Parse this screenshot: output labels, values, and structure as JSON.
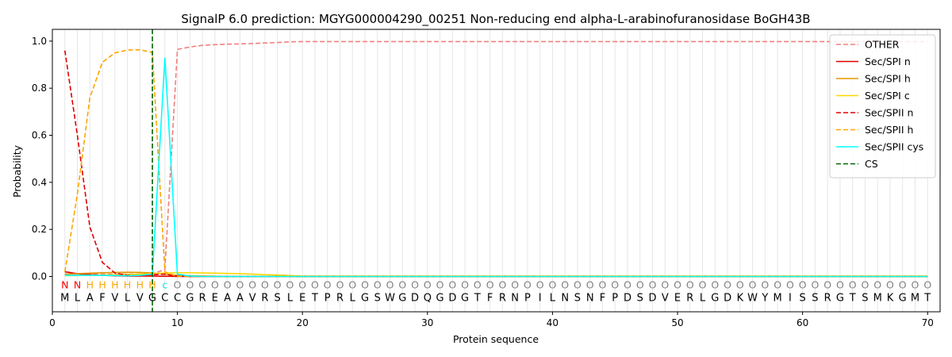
{
  "chart_data": {
    "type": "line",
    "title": "SignalP 6.0 prediction: MGYG000004290_00251 Non-reducing end alpha-L-arabinofuranosidase BoGH43B",
    "xlabel": "Protein sequence",
    "ylabel": "Probability",
    "xlim": [
      0,
      71
    ],
    "ylim": [
      -0.15,
      1.05
    ],
    "xticks": [
      0,
      10,
      20,
      30,
      40,
      50,
      60,
      70
    ],
    "yticks": [
      0.0,
      0.2,
      0.4,
      0.6,
      0.8,
      1.0
    ],
    "grid": "vertical lines at each residue",
    "legend_position": "top-right",
    "sequence": "MLAFVLVGCCGREAAVRSLETPRLGSWGDQGDGTFRNPILNSNFPDSDVERLGDKWYMISSRGTSMKGMT",
    "regions": "NNHHHHHHcOOOOOOOOOOOOOOOOOOOOOOOOOOOOOOOOOOOOOOOOOOOOOOOOOOOOOOOOOOOOO",
    "region_colors": {
      "N": "#ff0000",
      "H": "#ffa500",
      "c": "#00e5e5",
      "O": "#808080"
    },
    "cleavage_site": 8,
    "series": [
      {
        "name": "OTHER",
        "color": "#f08080",
        "dash": "6,3",
        "values": [
          0.01,
          0.01,
          0.01,
          0.01,
          0.01,
          0.01,
          0.01,
          0.01,
          0.03,
          0.965,
          0.975,
          0.982,
          0.985,
          0.987,
          0.988,
          0.99,
          0.992,
          0.994,
          0.997,
          0.998
        ]
      },
      {
        "name": "Sec/SPI n",
        "color": "#e00000",
        "dash": "",
        "values": [
          0.02,
          0.012,
          0.008,
          0.005,
          0.003,
          0.002,
          0.002,
          0.002,
          0.001,
          0,
          0,
          0,
          0,
          0,
          0,
          0,
          0,
          0,
          0,
          0
        ]
      },
      {
        "name": "Sec/SPI h",
        "color": "#e69500",
        "dash": "",
        "values": [
          0.01,
          0.012,
          0.014,
          0.016,
          0.017,
          0.018,
          0.017,
          0.015,
          0.01,
          0.005,
          0.003,
          0.002,
          0.001,
          0,
          0,
          0,
          0,
          0,
          0,
          0
        ]
      },
      {
        "name": "Sec/SPI c",
        "color": "#ffd700",
        "dash": "",
        "values": [
          0.003,
          0.004,
          0.005,
          0.006,
          0.007,
          0.008,
          0.01,
          0.012,
          0.015,
          0.016,
          0.016,
          0.015,
          0.014,
          0.013,
          0.012,
          0.01,
          0.008,
          0.006,
          0.004,
          0.002
        ]
      },
      {
        "name": "Sec/SPII n",
        "color": "#e00000",
        "dash": "6,3",
        "values": [
          0.96,
          0.6,
          0.21,
          0.06,
          0.015,
          0.005,
          0.004,
          0.008,
          0.01,
          0.001,
          0,
          0,
          0,
          0,
          0,
          0,
          0,
          0,
          0,
          0
        ]
      },
      {
        "name": "Sec/SPII h",
        "color": "#ffa500",
        "dash": "6,3",
        "values": [
          0.02,
          0.35,
          0.76,
          0.91,
          0.95,
          0.962,
          0.963,
          0.952,
          0.02,
          0,
          0,
          0,
          0,
          0,
          0,
          0,
          0,
          0,
          0,
          0
        ]
      },
      {
        "name": "Sec/SPII cys",
        "color": "#00ffff",
        "dash": "",
        "values": [
          0.005,
          0.005,
          0.005,
          0.005,
          0.004,
          0.003,
          0.005,
          0.01,
          0.93,
          0.01,
          0.002,
          0,
          0,
          0,
          0,
          0,
          0,
          0,
          0,
          0
        ]
      },
      {
        "name": "CS",
        "color": "#006400",
        "dash": "6,3",
        "values": []
      }
    ]
  }
}
